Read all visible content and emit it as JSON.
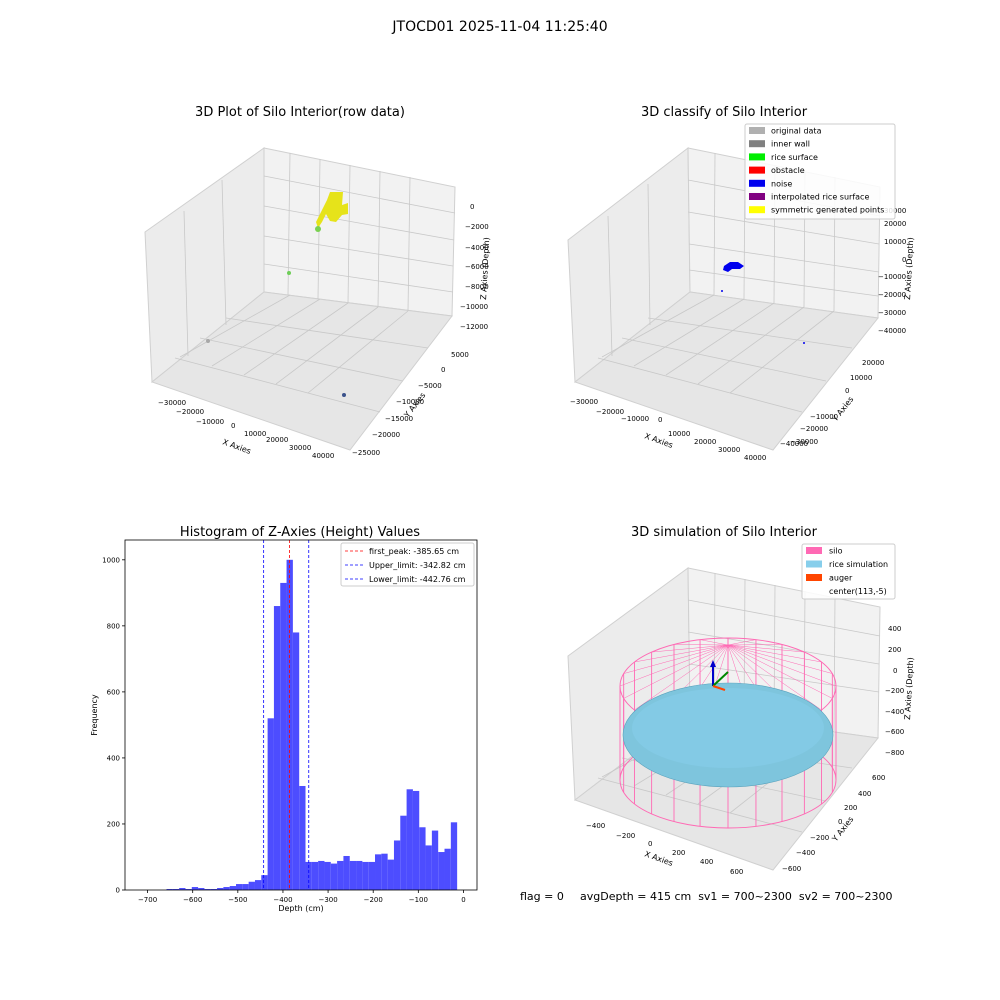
{
  "suptitle": "JTOCD01 2025-11-04 11:25:40",
  "footer": {
    "flag": "flag = 0",
    "stats": "avgDepth = 415 cm  sv1 = 700~2300  sv2 = 700~2300"
  },
  "chart_data": [
    {
      "type": "scatter",
      "title": "3D Plot of Silo Interior(row data)",
      "xlabel": "X Axies",
      "ylabel": "Y Axies",
      "zlabel": "Z Axies (Depth)",
      "xticks": [
        "−30000",
        "−20000",
        "−10000",
        "0",
        "10000",
        "20000",
        "30000",
        "40000"
      ],
      "yticks": [
        "5000",
        "0",
        "−5000",
        "−10000",
        "−15000",
        "−20000",
        "−25000"
      ],
      "zticks": [
        "0",
        "−2000",
        "−4000",
        "−6000",
        "−8000",
        "−10000",
        "−12000"
      ],
      "xlim": [
        -30000,
        40000
      ],
      "ylim": [
        -25000,
        5000
      ],
      "zlim": [
        -12000,
        0
      ],
      "colormap": "viridis",
      "points": [
        {
          "x": 500,
          "y": 500,
          "z": -300,
          "color": "#e8e416"
        },
        {
          "x": 1200,
          "y": 300,
          "z": -800,
          "color": "#d9e11e"
        },
        {
          "x": -800,
          "y": 800,
          "z": -1500,
          "color": "#b5de2b"
        },
        {
          "x": 2000,
          "y": -200,
          "z": -2000,
          "color": "#a0da39"
        },
        {
          "x": -2000,
          "y": 1000,
          "z": -2800,
          "color": "#7ad151"
        },
        {
          "x": -25000,
          "y": 3000,
          "z": -7000,
          "color": "#6ece58"
        },
        {
          "x": -28000,
          "y": -15000,
          "z": -8000,
          "color": "#a8a8a8"
        },
        {
          "x": 38000,
          "y": -20000,
          "z": -3000,
          "color": "#3b528b"
        }
      ]
    },
    {
      "type": "scatter",
      "title": "3D classify of Silo Interior",
      "xlabel": "X Axies",
      "ylabel": "Y Axies",
      "zlabel": "Z Axies (Depth)",
      "xticks": [
        "−30000",
        "−20000",
        "−10000",
        "0",
        "10000",
        "20000",
        "30000",
        "40000"
      ],
      "yticks": [
        "20000",
        "10000",
        "0",
        "−10000",
        "−20000",
        "−30000",
        "−40000"
      ],
      "zticks": [
        "30000",
        "20000",
        "10000",
        "0",
        "−10000",
        "−20000",
        "−30000",
        "−40000"
      ],
      "xlim": [
        -30000,
        40000
      ],
      "ylim": [
        -40000,
        20000
      ],
      "zlim": [
        -40000,
        30000
      ],
      "legend": [
        {
          "label": "original data",
          "color": "#b0b0b0"
        },
        {
          "label": "inner wall",
          "color": "#808080"
        },
        {
          "label": "rice surface",
          "color": "#00ee00"
        },
        {
          "label": "obstacle",
          "color": "#ff0000"
        },
        {
          "label": "noise",
          "color": "#0000ee"
        },
        {
          "label": "interpolated rice surface",
          "color": "#800080"
        },
        {
          "label": "symmetric generated points",
          "color": "#ffff00"
        }
      ],
      "legend_position": "top-right"
    },
    {
      "type": "bar",
      "title": "Histogram of Z-Axies (Height) Values",
      "xlabel": "Depth (cm)",
      "ylabel": "Frequency",
      "xlim": [
        -750,
        30
      ],
      "ylim": [
        0,
        1060
      ],
      "xticks": [
        "−700",
        "−600",
        "−500",
        "−400",
        "−300",
        "−200",
        "−100",
        "0"
      ],
      "yticks": [
        "0",
        "200",
        "400",
        "600",
        "800",
        "1000"
      ],
      "bin_width": 14,
      "bin_start": -700,
      "bar_color": "#4d4dff",
      "values": [
        0,
        0,
        0,
        3,
        3,
        6,
        3,
        9,
        6,
        3,
        3,
        6,
        9,
        12,
        18,
        18,
        25,
        30,
        45,
        520,
        860,
        930,
        1000,
        780,
        315,
        85,
        85,
        88,
        85,
        80,
        88,
        103,
        88,
        88,
        85,
        85,
        108,
        110,
        92,
        150,
        225,
        305,
        300,
        190,
        135,
        180,
        115,
        125,
        205
      ],
      "vlines": [
        {
          "value": -385.65,
          "color": "#ff0000",
          "label": "first_peak: -385.65 cm"
        },
        {
          "value": -342.82,
          "color": "#0000ff",
          "label": "Upper_limit: -342.82 cm"
        },
        {
          "value": -442.76,
          "color": "#0000ff",
          "label": "Lower_limit: -442.76 cm"
        }
      ],
      "legend_position": "top-right"
    },
    {
      "type": "scatter",
      "title": "3D simulation of Silo Interior",
      "xlabel": "X Axies",
      "ylabel": "Y Axies",
      "zlabel": "Z Axies (Depth)",
      "xticks": [
        "−400",
        "−200",
        "0",
        "200",
        "400",
        "600"
      ],
      "yticks": [
        "600",
        "400",
        "200",
        "0",
        "−200",
        "−400",
        "−600"
      ],
      "zticks": [
        "400",
        "200",
        "0",
        "−200",
        "−400",
        "−600",
        "−800"
      ],
      "legend": [
        {
          "label": "silo",
          "color": "#ff69b4"
        },
        {
          "label": "rice simulation",
          "color": "#87ceeb"
        },
        {
          "label": "auger",
          "color": "#ff4500"
        },
        {
          "label": "center(113,-5)",
          "color": ""
        }
      ],
      "legend_position": "top-right"
    }
  ]
}
